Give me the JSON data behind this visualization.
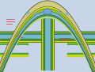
{
  "bg": "#c8d4e8",
  "skull_bone": "#d8d490",
  "skull_inner": "#c8c878",
  "dura": "#c8d818",
  "arachnoid": "#98c830",
  "subspace": "#78b8d0",
  "pia": "#40a040",
  "brain": "#b8d888",
  "sinus_fill": "#78a8cc",
  "sinus_border": "#4878a8",
  "falx_dura": "#c8d818",
  "falx_green": "#40a040",
  "falx_center": "#78b8d0",
  "red": "#c84040",
  "outline": "#606030",
  "figw": 1.2,
  "figh": 0.91,
  "dpi": 100
}
